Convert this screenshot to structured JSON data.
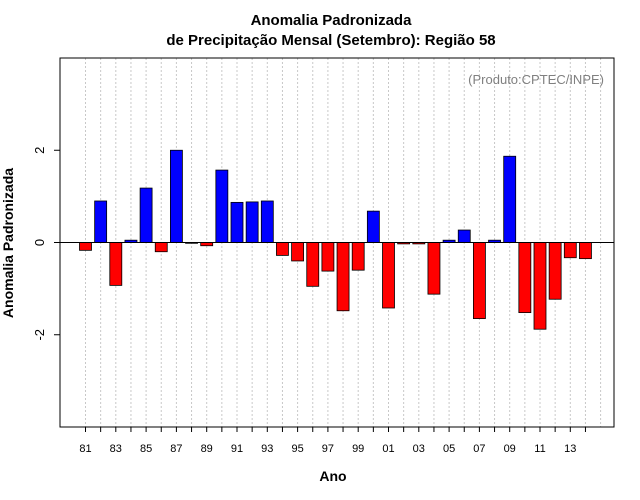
{
  "chart_data": {
    "type": "bar",
    "title_line1": "Anomalia Padronizada",
    "title_line2": "de Precipitação Mensal (Setembro): Região 58",
    "xlabel": "Ano",
    "ylabel": "Anomalia Padronizada",
    "annotation": "(Produto:CPTEC/INPE)",
    "ylim": [
      -4,
      4
    ],
    "yticks": [
      -2,
      0,
      2
    ],
    "categories": [
      "81",
      "82",
      "83",
      "84",
      "85",
      "86",
      "87",
      "88",
      "89",
      "90",
      "91",
      "92",
      "93",
      "94",
      "95",
      "96",
      "97",
      "98",
      "99",
      "00",
      "01",
      "02",
      "03",
      "04",
      "05",
      "06",
      "07",
      "08",
      "09",
      "10",
      "11",
      "12",
      "13",
      "14"
    ],
    "xtick_labels": [
      "81",
      "83",
      "85",
      "87",
      "89",
      "91",
      "93",
      "95",
      "97",
      "99",
      "01",
      "03",
      "05",
      "07",
      "09",
      "11",
      "13"
    ],
    "values": [
      -0.17,
      0.9,
      -0.93,
      0.05,
      1.18,
      -0.2,
      2.0,
      0.0,
      -0.07,
      1.57,
      0.87,
      0.88,
      0.9,
      -0.28,
      -0.4,
      -0.95,
      -0.62,
      -1.48,
      -0.6,
      0.68,
      -1.42,
      -0.03,
      -0.03,
      -1.12,
      0.05,
      0.27,
      -1.65,
      0.05,
      1.87,
      -1.52,
      -1.88,
      -1.23,
      -0.33,
      -0.35
    ],
    "grid": "vertical-dotted",
    "colors": {
      "positive": "#0000ff",
      "negative": "#ff0000",
      "grid": "#c8c8c8",
      "zero_line": "#000000"
    }
  }
}
